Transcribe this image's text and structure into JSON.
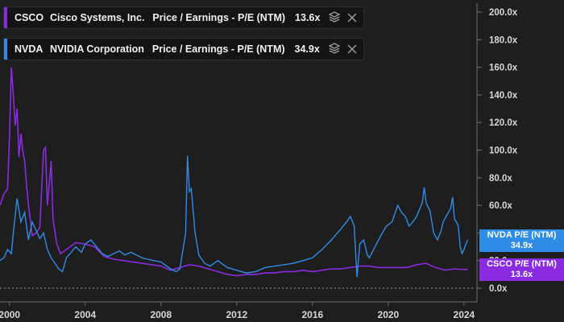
{
  "legend": [
    {
      "ticker": "CSCO",
      "company": "Cisco Systems, Inc.",
      "metric": "Price / Earnings - P/E (NTM)",
      "value": "13.6x",
      "color": "#8a2be2"
    },
    {
      "ticker": "NVDA",
      "company": "NVIDIA Corporation",
      "metric": "Price / Earnings - P/E (NTM)",
      "value": "34.9x",
      "color": "#2f8ce6"
    }
  ],
  "tags": {
    "nvda": {
      "label": "NVDA P/E (NTM)",
      "value": "34.9x",
      "color": "#2f8ce6"
    },
    "csco": {
      "label": "CSCO P/E (NTM)",
      "value": "13.6x",
      "color": "#8a2be2"
    }
  },
  "chart_data": {
    "type": "line",
    "title": "",
    "xlabel": "",
    "ylabel": "",
    "xlim": [
      1999.5,
      2024.6
    ],
    "ylim": [
      0,
      200
    ],
    "x_ticks": [
      "2000",
      "2004",
      "2008",
      "2012",
      "2016",
      "2020",
      "2024"
    ],
    "y_ticks": [
      "0.0x",
      "20.0x",
      "40.0x",
      "60.0x",
      "80.0x",
      "100.0x",
      "120.0x",
      "140.0x",
      "160.0x",
      "180.0x",
      "200.0x"
    ],
    "grid": false,
    "series": [
      {
        "name": "CSCO",
        "color": "#8a2be2",
        "points": [
          [
            1999.5,
            60
          ],
          [
            1999.7,
            68
          ],
          [
            1999.9,
            72
          ],
          [
            2000.0,
            110
          ],
          [
            2000.1,
            160
          ],
          [
            2000.2,
            140
          ],
          [
            2000.3,
            118
          ],
          [
            2000.4,
            130
          ],
          [
            2000.5,
            95
          ],
          [
            2000.6,
            112
          ],
          [
            2000.7,
            100
          ],
          [
            2000.8,
            92
          ],
          [
            2000.9,
            75
          ],
          [
            2001.0,
            60
          ],
          [
            2001.1,
            50
          ],
          [
            2001.2,
            38
          ],
          [
            2001.4,
            40
          ],
          [
            2001.6,
            44
          ],
          [
            2001.8,
            100
          ],
          [
            2001.9,
            102
          ],
          [
            2002.0,
            60
          ],
          [
            2002.2,
            92
          ],
          [
            2002.3,
            50
          ],
          [
            2002.5,
            32
          ],
          [
            2002.7,
            25
          ],
          [
            2003.0,
            28
          ],
          [
            2003.5,
            33
          ],
          [
            2004.0,
            32
          ],
          [
            2004.5,
            30
          ],
          [
            2005.0,
            23
          ],
          [
            2005.5,
            21
          ],
          [
            2006.0,
            20
          ],
          [
            2006.5,
            19
          ],
          [
            2007.0,
            18
          ],
          [
            2007.5,
            17
          ],
          [
            2008.0,
            16
          ],
          [
            2008.5,
            13
          ],
          [
            2009.0,
            15
          ],
          [
            2009.5,
            17
          ],
          [
            2010.0,
            16
          ],
          [
            2010.5,
            14
          ],
          [
            2011.0,
            12
          ],
          [
            2011.5,
            10
          ],
          [
            2012.0,
            9
          ],
          [
            2012.5,
            10
          ],
          [
            2013.0,
            10
          ],
          [
            2013.5,
            11
          ],
          [
            2014.0,
            11
          ],
          [
            2014.5,
            12
          ],
          [
            2015.0,
            12
          ],
          [
            2015.5,
            13
          ],
          [
            2016.0,
            12
          ],
          [
            2016.5,
            13
          ],
          [
            2017.0,
            14
          ],
          [
            2017.5,
            14
          ],
          [
            2018.0,
            15
          ],
          [
            2018.5,
            16
          ],
          [
            2019.0,
            16
          ],
          [
            2019.5,
            15
          ],
          [
            2020.0,
            15
          ],
          [
            2020.5,
            15
          ],
          [
            2021.0,
            15
          ],
          [
            2021.5,
            17
          ],
          [
            2022.0,
            18
          ],
          [
            2022.5,
            15
          ],
          [
            2023.0,
            13
          ],
          [
            2023.5,
            14
          ],
          [
            2024.0,
            13.5
          ],
          [
            2024.2,
            13.6
          ]
        ]
      },
      {
        "name": "NVDA",
        "color": "#2f8ce6",
        "points": [
          [
            1999.5,
            20
          ],
          [
            1999.7,
            22
          ],
          [
            1999.9,
            28
          ],
          [
            2000.1,
            25
          ],
          [
            2000.2,
            40
          ],
          [
            2000.4,
            65
          ],
          [
            2000.6,
            48
          ],
          [
            2000.8,
            55
          ],
          [
            2001.0,
            35
          ],
          [
            2001.2,
            48
          ],
          [
            2001.4,
            42
          ],
          [
            2001.6,
            36
          ],
          [
            2001.8,
            40
          ],
          [
            2002.0,
            28
          ],
          [
            2002.2,
            22
          ],
          [
            2002.4,
            18
          ],
          [
            2002.6,
            14
          ],
          [
            2002.8,
            12
          ],
          [
            2003.0,
            22
          ],
          [
            2003.2,
            25
          ],
          [
            2003.5,
            30
          ],
          [
            2003.8,
            26
          ],
          [
            2004.0,
            32
          ],
          [
            2004.3,
            35
          ],
          [
            2004.6,
            30
          ],
          [
            2004.9,
            25
          ],
          [
            2005.2,
            23
          ],
          [
            2005.5,
            25
          ],
          [
            2005.8,
            27
          ],
          [
            2006.1,
            24
          ],
          [
            2006.4,
            26
          ],
          [
            2006.7,
            24
          ],
          [
            2007.0,
            22
          ],
          [
            2007.3,
            21
          ],
          [
            2007.6,
            20
          ],
          [
            2008.0,
            19
          ],
          [
            2008.5,
            14
          ],
          [
            2008.8,
            12
          ],
          [
            2009.0,
            14
          ],
          [
            2009.3,
            40
          ],
          [
            2009.4,
            96
          ],
          [
            2009.5,
            70
          ],
          [
            2009.6,
            72
          ],
          [
            2009.8,
            40
          ],
          [
            2010.0,
            24
          ],
          [
            2010.3,
            18
          ],
          [
            2010.6,
            16
          ],
          [
            2011.0,
            20
          ],
          [
            2011.5,
            15
          ],
          [
            2012.0,
            13
          ],
          [
            2012.5,
            11
          ],
          [
            2013.0,
            12
          ],
          [
            2013.5,
            15
          ],
          [
            2014.0,
            16
          ],
          [
            2014.5,
            17
          ],
          [
            2015.0,
            18
          ],
          [
            2015.5,
            20
          ],
          [
            2016.0,
            22
          ],
          [
            2016.5,
            28
          ],
          [
            2017.0,
            35
          ],
          [
            2017.5,
            43
          ],
          [
            2017.8,
            48
          ],
          [
            2018.0,
            52
          ],
          [
            2018.2,
            45
          ],
          [
            2018.35,
            8
          ],
          [
            2018.5,
            32
          ],
          [
            2018.7,
            35
          ],
          [
            2018.9,
            24
          ],
          [
            2019.0,
            22
          ],
          [
            2019.3,
            30
          ],
          [
            2019.6,
            38
          ],
          [
            2019.9,
            45
          ],
          [
            2020.2,
            48
          ],
          [
            2020.5,
            60
          ],
          [
            2020.7,
            55
          ],
          [
            2020.9,
            52
          ],
          [
            2021.1,
            45
          ],
          [
            2021.3,
            48
          ],
          [
            2021.5,
            52
          ],
          [
            2021.8,
            62
          ],
          [
            2021.9,
            73
          ],
          [
            2022.0,
            62
          ],
          [
            2022.2,
            56
          ],
          [
            2022.4,
            40
          ],
          [
            2022.6,
            35
          ],
          [
            2022.8,
            42
          ],
          [
            2022.9,
            48
          ],
          [
            2023.1,
            53
          ],
          [
            2023.3,
            58
          ],
          [
            2023.4,
            66
          ],
          [
            2023.5,
            50
          ],
          [
            2023.6,
            48
          ],
          [
            2023.7,
            45
          ],
          [
            2023.8,
            30
          ],
          [
            2023.9,
            25
          ],
          [
            2024.0,
            28
          ],
          [
            2024.1,
            32
          ],
          [
            2024.2,
            34.9
          ]
        ]
      }
    ]
  }
}
